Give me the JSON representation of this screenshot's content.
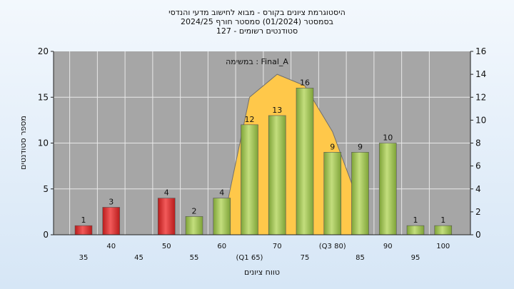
{
  "chart_data": {
    "type": "bar",
    "title_lines": [
      "היסטוגרמת ציונים בקורס - מבוא לחישוב מדעי והנדסי",
      "בסמסטר  (01/2024)  סמסטר חורף 2024/25",
      "סטודנטים רשומים - 127"
    ],
    "annotation": "במשימה : Final_A",
    "xlabel": "טווח ציונים",
    "ylabel": "מספר סטודנטים",
    "ylim": [
      0,
      20
    ],
    "y_ticks": [
      "0",
      "5",
      "10",
      "15",
      "20"
    ],
    "y2lim": [
      0,
      16
    ],
    "y2_ticks": [
      "0",
      "2",
      "4",
      "6",
      "8",
      "10",
      "12",
      "14",
      "16"
    ],
    "grid": true,
    "x_tick_labels": [
      "35",
      "40",
      "45",
      "50",
      "55",
      "60",
      "(Q1 65)",
      "70",
      "75",
      "(Q3 80)",
      "85",
      "90",
      "95",
      "100"
    ],
    "bars": [
      {
        "bin": 35,
        "value": 1,
        "label": "1",
        "color": "#e03030"
      },
      {
        "bin": 40,
        "value": 3,
        "label": "3",
        "color": "#e03030"
      },
      {
        "bin": 50,
        "value": 4,
        "label": "4",
        "color": "#e03030"
      },
      {
        "bin": 55,
        "value": 2,
        "label": "2",
        "color": "#9cc04e"
      },
      {
        "bin": 60,
        "value": 4,
        "label": "4",
        "color": "#9cc04e"
      },
      {
        "bin": 65,
        "value": 12,
        "label": "12",
        "color": "#9cc04e"
      },
      {
        "bin": 70,
        "value": 13,
        "label": "13",
        "color": "#9cc04e"
      },
      {
        "bin": 75,
        "value": 16,
        "label": "16",
        "color": "#9cc04e"
      },
      {
        "bin": 80,
        "value": 9,
        "label": "9",
        "color": "#9cc04e"
      },
      {
        "bin": 85,
        "value": 9,
        "label": "9",
        "color": "#9cc04e"
      },
      {
        "bin": 90,
        "value": 10,
        "label": "10",
        "color": "#9cc04e"
      },
      {
        "bin": 95,
        "value": 1,
        "label": "1",
        "color": "#9cc04e"
      },
      {
        "bin": 100,
        "value": 1,
        "label": "1",
        "color": "#9cc04e"
      }
    ],
    "distribution_curve": {
      "axis": "y2",
      "fill_color": "#ffc84a",
      "points": [
        [
          60,
          0.5
        ],
        [
          65,
          12
        ],
        [
          70,
          14
        ],
        [
          75,
          13
        ],
        [
          80,
          9
        ],
        [
          85,
          2.5
        ]
      ]
    },
    "colors": {
      "plot_bg": "#a6a6a6",
      "fail": "#e03030",
      "pass": "#9cc04e",
      "curve": "#ffc84a"
    }
  }
}
